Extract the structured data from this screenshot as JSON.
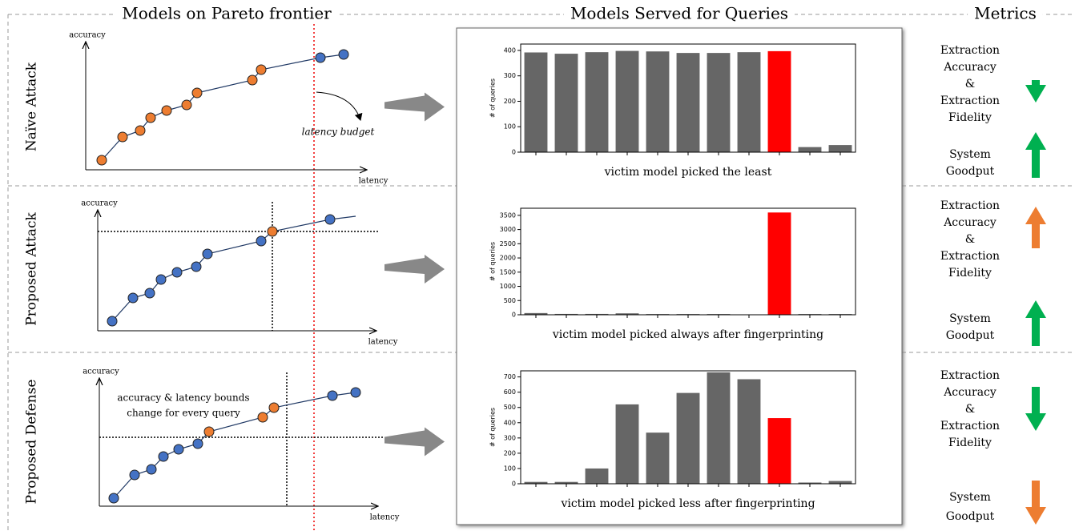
{
  "headers": [
    "Models on Pareto frontier",
    "Models Served for Queries",
    "Metrics"
  ],
  "rows": [
    {
      "label": "Naïve Attack",
      "pareto": {
        "y_label": "accuracy",
        "x_label": "latency",
        "annotation": [
          "latency budget"
        ]
      },
      "bars": {
        "type": "bar",
        "y_label": "# of queries",
        "values": [
          392,
          387,
          393,
          398,
          396,
          390,
          390,
          393,
          397,
          20,
          28
        ],
        "bar_colors": [
          "#666666",
          "#666666",
          "#666666",
          "#666666",
          "#666666",
          "#666666",
          "#666666",
          "#666666",
          "#ff0000",
          "#666666",
          "#666666"
        ],
        "ylim": [
          0,
          425
        ],
        "yticks": [
          0,
          100,
          200,
          300,
          400
        ],
        "caption": "victim model picked the least"
      },
      "metrics": [
        {
          "lines": [
            "Extraction",
            "Accuracy",
            "&",
            "Extraction",
            "Fidelity"
          ],
          "direction": "down",
          "color": "#00b050"
        },
        {
          "lines": [
            "System",
            "Goodput"
          ],
          "direction": "up",
          "color": "#00b050"
        }
      ]
    },
    {
      "label": "Proposed Attack",
      "pareto": {
        "y_label": "accuracy",
        "x_label": "latency",
        "annotation": []
      },
      "bars": {
        "type": "bar",
        "y_label": "# of queries",
        "values": [
          60,
          30,
          30,
          50,
          25,
          25,
          25,
          0,
          3600,
          25,
          25
        ],
        "bar_colors": [
          "#666666",
          "#666666",
          "#666666",
          "#666666",
          "#666666",
          "#666666",
          "#666666",
          "#666666",
          "#ff0000",
          "#666666",
          "#666666"
        ],
        "ylim": [
          0,
          3750
        ],
        "yticks": [
          0,
          500,
          1000,
          1500,
          2000,
          2500,
          3000,
          3500
        ],
        "caption": "victim model picked always after fingerprinting"
      },
      "metrics": [
        {
          "lines": [
            "Extraction",
            "Accuracy",
            "&",
            "Extraction",
            "Fidelity"
          ],
          "direction": "up",
          "color": "#ed7d31"
        },
        {
          "lines": [
            "System",
            "Goodput"
          ],
          "direction": "up",
          "color": "#00b050"
        }
      ]
    },
    {
      "label": "Proposed Defense",
      "pareto": {
        "y_label": "accuracy",
        "x_label": "latency",
        "annotation": [
          "accuracy & latency bounds",
          "change for every query"
        ]
      },
      "bars": {
        "type": "bar",
        "y_label": "# of queries",
        "values": [
          12,
          12,
          100,
          520,
          335,
          595,
          730,
          685,
          430,
          8,
          18
        ],
        "bar_colors": [
          "#666666",
          "#666666",
          "#666666",
          "#666666",
          "#666666",
          "#666666",
          "#666666",
          "#666666",
          "#ff0000",
          "#666666",
          "#666666"
        ],
        "ylim": [
          0,
          740
        ],
        "yticks": [
          0,
          100,
          200,
          300,
          400,
          500,
          600,
          700
        ],
        "caption": "victim model picked less after fingerprinting"
      },
      "metrics": [
        {
          "lines": [
            "Extraction",
            "Accuracy",
            "&",
            "Extraction",
            "Fidelity"
          ],
          "direction": "down",
          "color": "#00b050"
        },
        {
          "lines": [
            "System",
            "Goodput"
          ],
          "direction": "down",
          "color": "#ed7d31"
        }
      ]
    }
  ]
}
